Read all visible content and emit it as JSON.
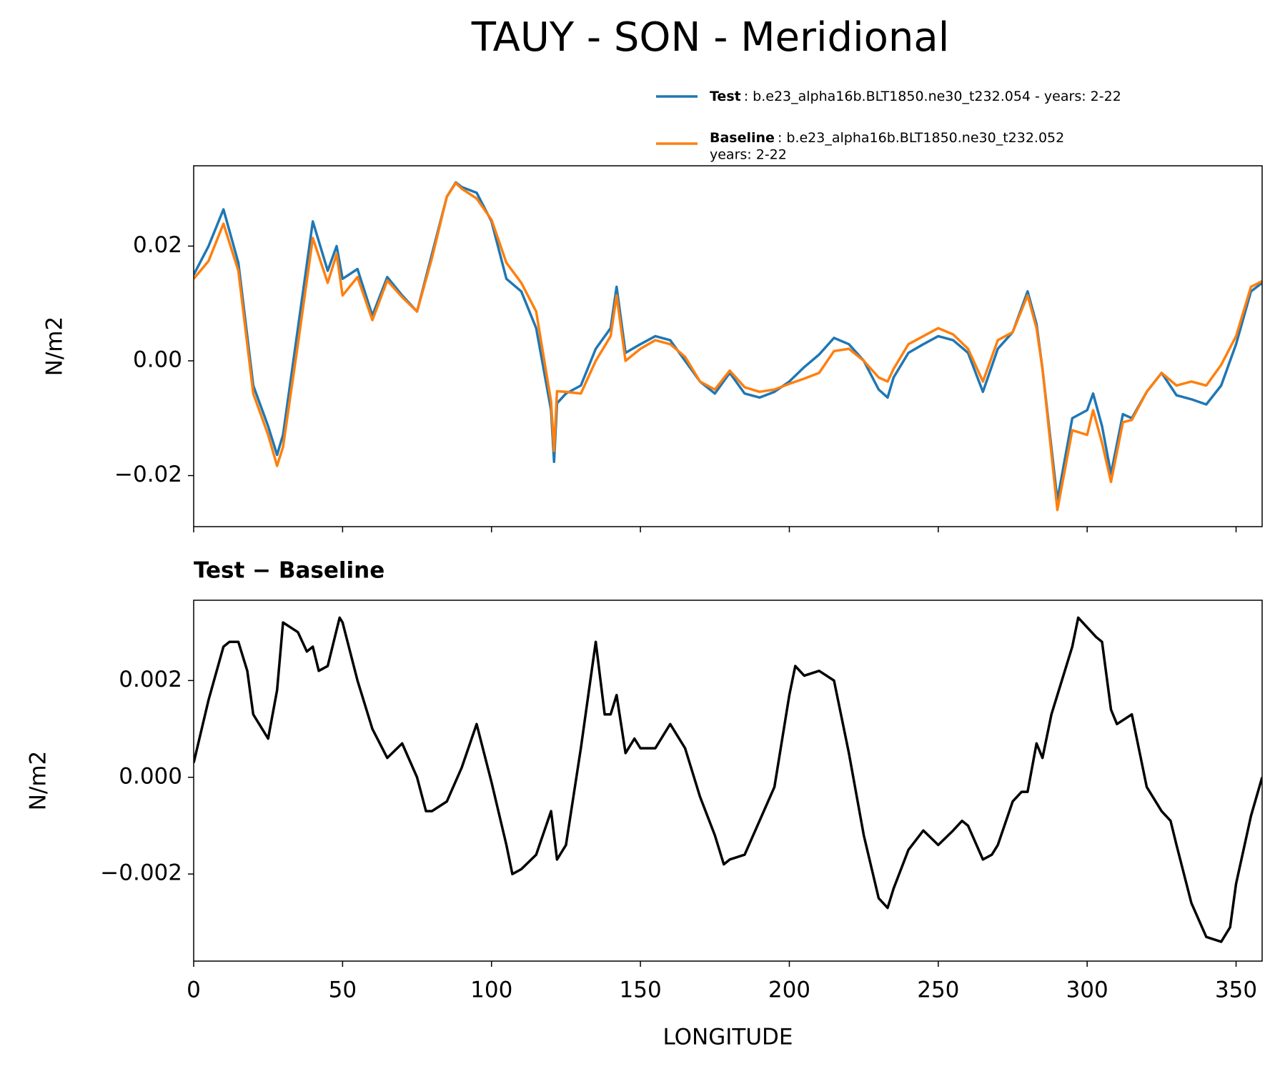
{
  "chart_data": [
    {
      "type": "line",
      "title": "TAUY - SON - Meridional",
      "ylabel": "N/m2",
      "x": [
        0,
        5,
        10,
        15,
        20,
        25,
        28,
        30,
        35,
        40,
        45,
        48,
        50,
        55,
        60,
        65,
        70,
        75,
        80,
        85,
        88,
        90,
        95,
        100,
        105,
        110,
        115,
        120,
        121,
        122,
        125,
        130,
        135,
        140,
        142,
        145,
        150,
        155,
        160,
        165,
        170,
        175,
        180,
        185,
        190,
        195,
        200,
        205,
        210,
        215,
        220,
        225,
        230,
        233,
        235,
        240,
        245,
        250,
        255,
        260,
        265,
        270,
        275,
        280,
        283,
        285,
        290,
        295,
        300,
        302,
        305,
        308,
        312,
        315,
        320,
        325,
        330,
        335,
        340,
        345,
        350,
        355,
        358.75
      ],
      "series": [
        {
          "name": "Test",
          "description": [
            ": b.e23_alpha16b.BLT1850.ne30_t232.054 - years: 2-22"
          ],
          "color": "#1f77b4",
          "values": [
            0.015,
            0.02,
            0.0264,
            0.0171,
            -0.0043,
            -0.0114,
            -0.0164,
            -0.0129,
            0.0057,
            0.0243,
            0.0157,
            0.02,
            0.0143,
            0.016,
            0.0079,
            0.0146,
            0.0114,
            0.0086,
            0.0186,
            0.0286,
            0.0311,
            0.0303,
            0.0293,
            0.0243,
            0.0143,
            0.0121,
            0.0057,
            -0.0086,
            -0.0176,
            -0.0074,
            -0.0057,
            -0.0043,
            0.0021,
            0.0057,
            0.0129,
            0.0014,
            0.0029,
            0.0043,
            0.0036,
            0,
            -0.0036,
            -0.0057,
            -0.0021,
            -0.0057,
            -0.0064,
            -0.0054,
            -0.0036,
            -0.0011,
            0.0011,
            0.004,
            0.0029,
            0,
            -0.005,
            -0.0064,
            -0.0029,
            0.0014,
            0.0029,
            0.0043,
            0.0036,
            0.0014,
            -0.0054,
            0.0021,
            0.005,
            0.0121,
            0.0064,
            -0.0014,
            -0.0243,
            -0.01,
            -0.0086,
            -0.0057,
            -0.0114,
            -0.0197,
            -0.0093,
            -0.01,
            -0.0054,
            -0.0021,
            -0.006,
            -0.0067,
            -0.0076,
            -0.0043,
            0.0029,
            0.0121,
            0.0136
          ]
        },
        {
          "name": "Baseline",
          "description": [
            ": b.e23_alpha16b.BLT1850.ne30_t232.052",
            "years: 2-22"
          ],
          "color": "#ff7f0e",
          "values": [
            0.0143,
            0.0174,
            0.0239,
            0.0157,
            -0.0057,
            -0.0129,
            -0.0183,
            -0.015,
            0.0029,
            0.0214,
            0.0136,
            0.0186,
            0.0114,
            0.0146,
            0.0071,
            0.014,
            0.0111,
            0.0086,
            0.0179,
            0.0286,
            0.031,
            0.03,
            0.0283,
            0.0246,
            0.0171,
            0.0136,
            0.0086,
            -0.0071,
            -0.0157,
            -0.0053,
            -0.0054,
            -0.0057,
            0,
            0.0043,
            0.0114,
            0,
            0.0021,
            0.0036,
            0.0029,
            0.0007,
            -0.0036,
            -0.005,
            -0.0017,
            -0.0046,
            -0.0054,
            -0.005,
            -0.004,
            -0.0031,
            -0.0021,
            0.0017,
            0.0021,
            0,
            -0.0029,
            -0.0036,
            -0.0014,
            0.0029,
            0.0043,
            0.0057,
            0.0046,
            0.0021,
            -0.0036,
            0.0036,
            0.005,
            0.0114,
            0.0057,
            -0.0014,
            -0.026,
            -0.0121,
            -0.0129,
            -0.0086,
            -0.0143,
            -0.0211,
            -0.0107,
            -0.0103,
            -0.0054,
            -0.0021,
            -0.0043,
            -0.0036,
            -0.0043,
            -0.0007,
            0.0043,
            0.0129,
            0.0139
          ]
        }
      ],
      "xlim": [
        0,
        358.75
      ],
      "ylim": [
        -0.0289,
        0.034
      ],
      "yticks": [
        {
          "value": -0.02,
          "label": "−0.02"
        },
        {
          "value": 0,
          "label": "0.00"
        },
        0.02
      ]
    },
    {
      "type": "line",
      "title": "Test − Baseline",
      "xlabel": "LONGITUDE",
      "ylabel": "N/m2",
      "x": [
        0,
        5,
        10,
        12,
        15,
        18,
        20,
        25,
        28,
        30,
        35,
        38,
        40,
        42,
        45,
        49,
        50,
        55,
        60,
        65,
        70,
        75,
        78,
        80,
        85,
        90,
        95,
        100,
        105,
        107,
        110,
        115,
        120,
        122,
        125,
        130,
        135,
        138,
        140,
        142,
        145,
        148,
        150,
        155,
        160,
        165,
        170,
        175,
        178,
        180,
        185,
        190,
        195,
        200,
        202,
        205,
        210,
        215,
        220,
        225,
        230,
        233,
        235,
        240,
        245,
        250,
        255,
        258,
        260,
        265,
        268,
        270,
        275,
        278,
        280,
        283,
        285,
        288,
        290,
        295,
        297,
        300,
        303,
        305,
        308,
        310,
        315,
        320,
        325,
        328,
        330,
        335,
        340,
        345,
        348,
        350,
        355,
        358.75
      ],
      "series": [
        {
          "color": "#000000",
          "values": [
            0.0003,
            0.0016,
            0.0027,
            0.0028,
            0.0028,
            0.0022,
            0.0013,
            0.0008,
            0.0018,
            0.0032,
            0.003,
            0.0026,
            0.0027,
            0.0022,
            0.0023,
            0.0033,
            0.0032,
            0.002,
            0.001,
            0.0004,
            0.0007,
            0,
            -0.0007,
            -0.0007,
            -0.0005,
            0.0002,
            0.0011,
            -0.0001,
            -0.0014,
            -0.002,
            -0.0019,
            -0.0016,
            -0.0007,
            -0.0017,
            -0.0014,
            0.0006,
            0.0028,
            0.0013,
            0.0013,
            0.0017,
            0.0005,
            0.0008,
            0.0006,
            0.0006,
            0.0011,
            0.0006,
            -0.0004,
            -0.0012,
            -0.0018,
            -0.0017,
            -0.0016,
            -0.0009,
            -0.0002,
            0.0017,
            0.0023,
            0.0021,
            0.0022,
            0.002,
            0.0005,
            -0.0012,
            -0.0025,
            -0.0027,
            -0.0023,
            -0.0015,
            -0.0011,
            -0.0014,
            -0.0011,
            -0.0009,
            -0.001,
            -0.0017,
            -0.0016,
            -0.0014,
            -0.0005,
            -0.0003,
            -0.0003,
            0.0007,
            0.0004,
            0.0013,
            0.0017,
            0.0027,
            0.0033,
            0.0031,
            0.0029,
            0.0028,
            0.0014,
            0.0011,
            0.0013,
            -0.0002,
            -0.0007,
            -0.0009,
            -0.0014,
            -0.0026,
            -0.0033,
            -0.0034,
            -0.0031,
            -0.0022,
            -0.0008,
            0
          ]
        }
      ],
      "xlim": [
        0,
        358.75
      ],
      "ylim": [
        -0.0038,
        0.00366
      ],
      "xticks": [
        0,
        50,
        100,
        150,
        200,
        250,
        300,
        350
      ],
      "yticks": [
        {
          "value": -0.002,
          "label": "−0.002"
        },
        {
          "value": 0,
          "label": "0.000"
        },
        0.002
      ]
    }
  ]
}
